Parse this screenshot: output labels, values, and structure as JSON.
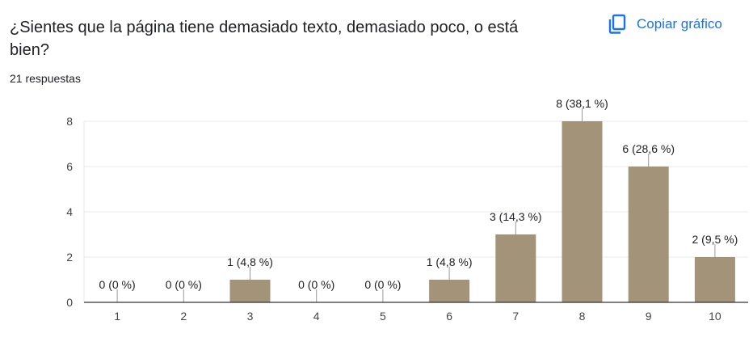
{
  "question": {
    "title": "¿Sientes que la página tiene demasiado texto, demasiado poco, o está bien?",
    "responses": "21 respuestas"
  },
  "toolbar": {
    "copy_label": "Copiar gráfico",
    "copy_icon": "copy-icon"
  },
  "colors": {
    "bar": "#a39479",
    "accent": "#1a73e8",
    "grid": "#e8e8e8",
    "axis": "#333333"
  },
  "chart_data": {
    "type": "bar",
    "title": "",
    "xlabel": "",
    "ylabel": "",
    "categories": [
      "1",
      "2",
      "3",
      "4",
      "5",
      "6",
      "7",
      "8",
      "9",
      "10"
    ],
    "values": [
      0,
      0,
      1,
      0,
      0,
      1,
      3,
      8,
      6,
      2
    ],
    "data_labels": [
      "0 (0 %)",
      "0 (0 %)",
      "1 (4,8 %)",
      "0 (0 %)",
      "0 (0 %)",
      "1 (4,8 %)",
      "3 (14,3 %)",
      "8 (38,1 %)",
      "6 (28,6 %)",
      "2 (9,5 %)"
    ],
    "y_ticks": [
      "0",
      "2",
      "4",
      "6",
      "8"
    ],
    "ylim": [
      0,
      8
    ],
    "grid": true,
    "legend": "none"
  }
}
